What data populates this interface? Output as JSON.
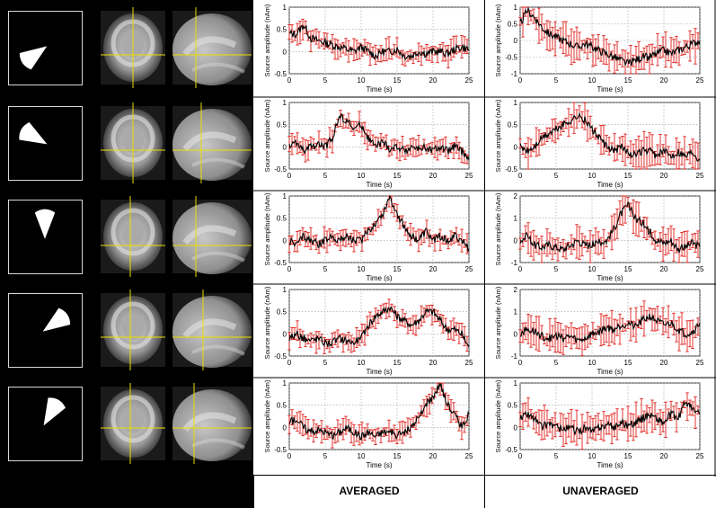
{
  "columns": {
    "averaged": "AVERAGED",
    "unaveraged": "UNAVERAGED"
  },
  "colors": {
    "trace": "#000000",
    "error_bars": "#e0201b",
    "grid": "#9a9a9a",
    "crosshair": "#e8e000"
  },
  "axis_text": {
    "xlabel": "Time (s)",
    "ylabel": "Source amplitude (nAm)"
  },
  "rows": [
    {
      "cone_direction_deg": 215
    },
    {
      "cone_direction_deg": 150
    },
    {
      "cone_direction_deg": 90
    },
    {
      "cone_direction_deg": 35
    },
    {
      "cone_direction_deg": 60
    }
  ],
  "chart_data": [
    {
      "type": "line",
      "panel": "row1-averaged",
      "xlabel": "Time (s)",
      "ylabel": "Source amplitude (nAm)",
      "xlim": [
        0,
        25
      ],
      "ylim": [
        -0.5,
        1.0
      ],
      "xticks": [
        0,
        5,
        10,
        15,
        20,
        25
      ],
      "yticks": [
        "-0.5",
        "0",
        "0.5",
        "1"
      ],
      "series": [
        {
          "x": [
            0,
            1,
            2,
            3,
            4,
            5,
            6,
            7,
            8,
            9,
            10,
            11,
            12,
            13,
            14,
            15,
            16,
            17,
            18,
            19,
            20,
            21,
            22,
            23,
            24,
            25
          ],
          "values": [
            0.4,
            0.4,
            0.6,
            0.3,
            0.25,
            0.2,
            0.15,
            0.1,
            0.05,
            0.0,
            0.1,
            0.0,
            -0.1,
            0.0,
            0.0,
            0.05,
            -0.1,
            -0.1,
            0.0,
            -0.05,
            0.0,
            0.0,
            -0.05,
            0.05,
            0.1,
            0.05
          ]
        }
      ],
      "error_bars": true,
      "grid": true
    },
    {
      "type": "line",
      "panel": "row1-unaveraged",
      "xlabel": "Time (s)",
      "ylabel": "Source amplitude (nAm)",
      "xlim": [
        0,
        25
      ],
      "ylim": [
        -1,
        1
      ],
      "xticks": [
        0,
        5,
        10,
        15,
        20,
        25
      ],
      "yticks": [
        "-1",
        "-0.5",
        "0",
        "0.5",
        "1"
      ],
      "series": [
        {
          "x": [
            0,
            1,
            2,
            3,
            4,
            5,
            6,
            7,
            8,
            9,
            10,
            11,
            12,
            13,
            14,
            15,
            16,
            17,
            18,
            19,
            20,
            21,
            22,
            23,
            24,
            25
          ],
          "values": [
            0.5,
            0.9,
            0.7,
            0.4,
            0.2,
            0.1,
            0.0,
            -0.1,
            -0.2,
            -0.1,
            -0.2,
            -0.3,
            -0.4,
            -0.5,
            -0.6,
            -0.7,
            -0.6,
            -0.5,
            -0.5,
            -0.4,
            -0.3,
            -0.4,
            -0.3,
            -0.2,
            -0.1,
            0.0
          ]
        }
      ],
      "error_bars": true,
      "grid": true
    },
    {
      "type": "line",
      "panel": "row2-averaged",
      "xlabel": "Time (s)",
      "ylabel": "Source amplitude (nAm)",
      "xlim": [
        0,
        25
      ],
      "ylim": [
        -0.5,
        1.0
      ],
      "xticks": [
        0,
        5,
        10,
        15,
        20,
        25
      ],
      "yticks": [
        "-0.5",
        "0",
        "0.5",
        "1"
      ],
      "series": [
        {
          "x": [
            0,
            1,
            2,
            3,
            4,
            5,
            6,
            7,
            8,
            9,
            10,
            11,
            12,
            13,
            14,
            15,
            16,
            17,
            18,
            19,
            20,
            21,
            22,
            23,
            24,
            25
          ],
          "values": [
            0.0,
            0.1,
            -0.1,
            0.0,
            0.05,
            0.0,
            0.2,
            0.7,
            0.6,
            0.4,
            0.5,
            0.2,
            0.0,
            0.1,
            -0.05,
            0.0,
            -0.1,
            0.0,
            -0.05,
            0.0,
            -0.1,
            0.0,
            -0.1,
            0.0,
            -0.1,
            -0.3
          ]
        }
      ],
      "error_bars": true,
      "grid": true
    },
    {
      "type": "line",
      "panel": "row2-unaveraged",
      "xlabel": "Time (s)",
      "ylabel": "Source amplitude (nAm)",
      "xlim": [
        0,
        25
      ],
      "ylim": [
        -0.5,
        1.0
      ],
      "xticks": [
        0,
        5,
        10,
        15,
        20,
        25
      ],
      "yticks": [
        "-0.5",
        "0",
        "0.5",
        "1"
      ],
      "series": [
        {
          "x": [
            0,
            1,
            2,
            3,
            4,
            5,
            6,
            7,
            8,
            9,
            10,
            11,
            12,
            13,
            14,
            15,
            16,
            17,
            18,
            19,
            20,
            21,
            22,
            23,
            24,
            25
          ],
          "values": [
            0.0,
            -0.1,
            0.0,
            0.2,
            0.3,
            0.4,
            0.5,
            0.6,
            0.7,
            0.6,
            0.4,
            0.2,
            0.0,
            -0.1,
            0.0,
            -0.1,
            -0.2,
            -0.1,
            -0.1,
            -0.2,
            -0.1,
            -0.2,
            -0.1,
            -0.2,
            -0.1,
            -0.3
          ]
        }
      ],
      "error_bars": true,
      "grid": true
    },
    {
      "type": "line",
      "panel": "row3-averaged",
      "xlabel": "Time (s)",
      "ylabel": "Source amplitude (nAm)",
      "xlim": [
        0,
        25
      ],
      "ylim": [
        -0.5,
        1.0
      ],
      "xticks": [
        0,
        5,
        10,
        15,
        20,
        25
      ],
      "yticks": [
        "-0.5",
        "0",
        "0.5",
        "1"
      ],
      "series": [
        {
          "x": [
            0,
            1,
            2,
            3,
            4,
            5,
            6,
            7,
            8,
            9,
            10,
            11,
            12,
            13,
            14,
            15,
            16,
            17,
            18,
            19,
            20,
            21,
            22,
            23,
            24,
            25
          ],
          "values": [
            0.0,
            -0.1,
            0.1,
            0.0,
            -0.1,
            0.0,
            0.1,
            0.0,
            0.1,
            0.0,
            0.0,
            0.2,
            0.4,
            0.6,
            1.0,
            0.6,
            0.3,
            0.1,
            0.0,
            0.2,
            0.0,
            0.1,
            0.0,
            0.1,
            0.0,
            -0.2
          ]
        }
      ],
      "error_bars": true,
      "grid": true
    },
    {
      "type": "line",
      "panel": "row3-unaveraged",
      "xlabel": "Time (s)",
      "ylabel": "Source amplitude (nAm)",
      "xlim": [
        0,
        25
      ],
      "ylim": [
        -1,
        2
      ],
      "xticks": [
        0,
        5,
        10,
        15,
        20,
        25
      ],
      "yticks": [
        "-1",
        "0",
        "1",
        "2"
      ],
      "series": [
        {
          "x": [
            0,
            1,
            2,
            3,
            4,
            5,
            6,
            7,
            8,
            9,
            10,
            11,
            12,
            13,
            14,
            15,
            16,
            17,
            18,
            19,
            20,
            21,
            22,
            23,
            24,
            25
          ],
          "values": [
            0.0,
            0.2,
            -0.2,
            -0.3,
            -0.2,
            -0.3,
            -0.4,
            -0.2,
            0.0,
            -0.2,
            -0.2,
            -0.1,
            0.0,
            0.5,
            1.2,
            1.6,
            1.0,
            0.8,
            0.4,
            0.0,
            -0.1,
            0.0,
            -0.4,
            -0.3,
            -0.1,
            -0.3
          ]
        }
      ],
      "error_bars": true,
      "grid": true
    },
    {
      "type": "line",
      "panel": "row4-averaged",
      "xlabel": "Time (s)",
      "ylabel": "Source amplitude (nAm)",
      "xlim": [
        0,
        25
      ],
      "ylim": [
        -0.5,
        1.0
      ],
      "xticks": [
        0,
        5,
        10,
        15,
        20,
        25
      ],
      "yticks": [
        "-0.5",
        "0",
        "0.5",
        "1"
      ],
      "series": [
        {
          "x": [
            0,
            1,
            2,
            3,
            4,
            5,
            6,
            7,
            8,
            9,
            10,
            11,
            12,
            13,
            14,
            15,
            16,
            17,
            18,
            19,
            20,
            21,
            22,
            23,
            24,
            25
          ],
          "values": [
            -0.1,
            0.0,
            -0.1,
            -0.15,
            -0.1,
            -0.2,
            -0.2,
            -0.1,
            -0.15,
            -0.2,
            -0.1,
            0.2,
            0.4,
            0.5,
            0.6,
            0.4,
            0.3,
            0.2,
            0.3,
            0.5,
            0.5,
            0.3,
            0.1,
            0.1,
            0.0,
            -0.3
          ]
        }
      ],
      "error_bars": true,
      "grid": true
    },
    {
      "type": "line",
      "panel": "row4-unaveraged",
      "xlabel": "Time (s)",
      "ylabel": "Source amplitude (nAm)",
      "xlim": [
        0,
        25
      ],
      "ylim": [
        -1,
        2
      ],
      "xticks": [
        0,
        5,
        10,
        15,
        20,
        25
      ],
      "yticks": [
        "-1",
        "0",
        "1",
        "2"
      ],
      "series": [
        {
          "x": [
            0,
            1,
            2,
            3,
            4,
            5,
            6,
            7,
            8,
            9,
            10,
            11,
            12,
            13,
            14,
            15,
            16,
            17,
            18,
            19,
            20,
            21,
            22,
            23,
            24,
            25
          ],
          "values": [
            0.0,
            0.2,
            0.1,
            -0.1,
            -0.2,
            -0.1,
            -0.2,
            -0.1,
            -0.3,
            -0.2,
            0.0,
            0.1,
            0.3,
            0.2,
            0.4,
            0.5,
            0.3,
            0.6,
            0.8,
            0.6,
            0.4,
            0.5,
            0.2,
            0.0,
            0.1,
            0.5
          ]
        }
      ],
      "error_bars": true,
      "grid": true
    },
    {
      "type": "line",
      "panel": "row5-averaged",
      "xlabel": "Time (s)",
      "ylabel": "Source amplitude (nAm)",
      "xlim": [
        0,
        25
      ],
      "ylim": [
        -0.5,
        1.0
      ],
      "xticks": [
        0,
        5,
        10,
        15,
        20,
        25
      ],
      "yticks": [
        "-0.5",
        "0",
        "0.5",
        "1"
      ],
      "series": [
        {
          "x": [
            0,
            1,
            2,
            3,
            4,
            5,
            6,
            7,
            8,
            9,
            10,
            11,
            12,
            13,
            14,
            15,
            16,
            17,
            18,
            19,
            20,
            21,
            22,
            23,
            24,
            25
          ],
          "values": [
            0.1,
            0.2,
            0.0,
            -0.1,
            -0.05,
            -0.1,
            -0.2,
            -0.1,
            0.0,
            -0.1,
            -0.2,
            -0.1,
            -0.2,
            -0.1,
            -0.1,
            -0.2,
            -0.1,
            0.0,
            0.2,
            0.5,
            0.7,
            1.0,
            0.5,
            0.3,
            0.0,
            0.3
          ]
        }
      ],
      "error_bars": true,
      "grid": true
    },
    {
      "type": "line",
      "panel": "row5-unaveraged",
      "xlabel": "Time (s)",
      "ylabel": "Source amplitude (nAm)",
      "xlim": [
        0,
        25
      ],
      "ylim": [
        -0.5,
        1.0
      ],
      "xticks": [
        0,
        5,
        10,
        15,
        20,
        25
      ],
      "yticks": [
        "-0.5",
        "0",
        "0.5",
        "1"
      ],
      "series": [
        {
          "x": [
            0,
            1,
            2,
            3,
            4,
            5,
            6,
            7,
            8,
            9,
            10,
            11,
            12,
            13,
            14,
            15,
            16,
            17,
            18,
            19,
            20,
            21,
            22,
            23,
            24,
            25
          ],
          "values": [
            0.2,
            0.3,
            0.2,
            0.0,
            0.1,
            0.0,
            -0.05,
            0.0,
            -0.1,
            0.0,
            -0.1,
            0.0,
            0.05,
            0.0,
            0.1,
            0.05,
            0.1,
            0.2,
            0.3,
            0.2,
            0.1,
            0.3,
            0.2,
            0.6,
            0.4,
            0.3
          ]
        }
      ],
      "error_bars": true,
      "grid": true
    }
  ]
}
